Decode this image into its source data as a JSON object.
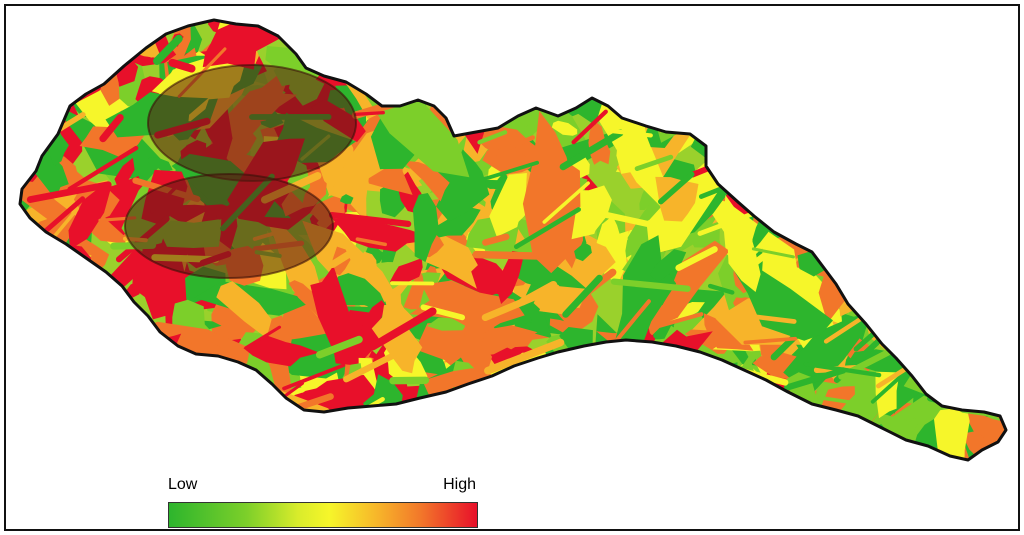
{
  "map": {
    "legend": {
      "low_label": "Low",
      "high_label": "High",
      "colors": [
        "#2db52d",
        "#7ccf2a",
        "#d9ec2b",
        "#f6f62a",
        "#f7b42a",
        "#f2762a",
        "#e8102a"
      ]
    },
    "highlight_zones": 2,
    "palette": {
      "outline": "#111111",
      "zone_fill": "#5a1a10"
    }
  }
}
